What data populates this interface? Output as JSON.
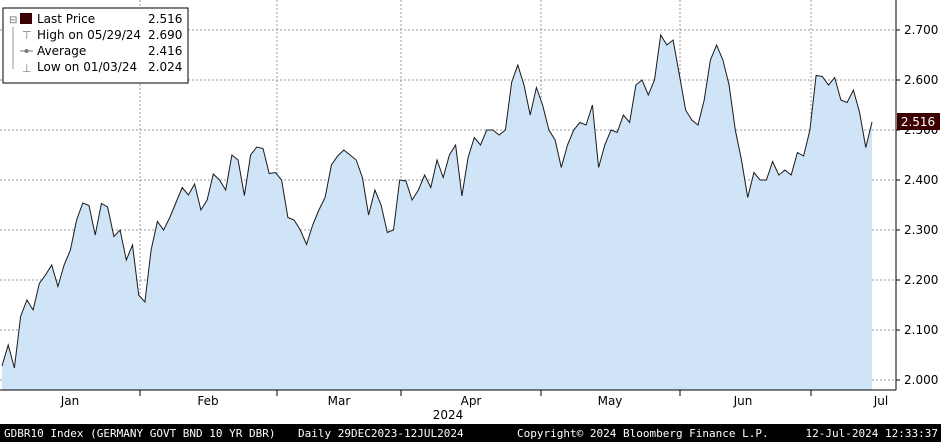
{
  "chart_data": {
    "type": "area",
    "title": "",
    "xlabel": "2024",
    "ylabel": "",
    "ylim": [
      1.98,
      2.76
    ],
    "y_ticks": [
      "2.000",
      "2.100",
      "2.200",
      "2.300",
      "2.400",
      "2.500",
      "2.600",
      "2.700"
    ],
    "x_ticks": [
      "Jan",
      "Feb",
      "Mar",
      "Apr",
      "May",
      "Jun",
      "Jul"
    ],
    "x_year_label": "2024",
    "last_value_label": "2.516",
    "grid": true,
    "legend_position": "top-left",
    "series": [
      {
        "name": "Last Price",
        "values": [
          2.028,
          2.07,
          2.024,
          2.127,
          2.16,
          2.14,
          2.193,
          2.21,
          2.23,
          2.187,
          2.23,
          2.26,
          2.32,
          2.354,
          2.349,
          2.29,
          2.353,
          2.346,
          2.287,
          2.3,
          2.24,
          2.27,
          2.17,
          2.156,
          2.26,
          2.317,
          2.3,
          2.325,
          2.355,
          2.385,
          2.37,
          2.392,
          2.34,
          2.36,
          2.412,
          2.4,
          2.38,
          2.45,
          2.44,
          2.369,
          2.45,
          2.466,
          2.463,
          2.413,
          2.415,
          2.4,
          2.325,
          2.32,
          2.3,
          2.271,
          2.31,
          2.34,
          2.365,
          2.43,
          2.448,
          2.46,
          2.45,
          2.44,
          2.405,
          2.33,
          2.38,
          2.35,
          2.295,
          2.3,
          2.4,
          2.398,
          2.36,
          2.38,
          2.41,
          2.385,
          2.44,
          2.405,
          2.45,
          2.47,
          2.368,
          2.445,
          2.485,
          2.47,
          2.5,
          2.5,
          2.49,
          2.5,
          2.595,
          2.63,
          2.59,
          2.53,
          2.585,
          2.55,
          2.5,
          2.48,
          2.425,
          2.47,
          2.5,
          2.515,
          2.51,
          2.55,
          2.425,
          2.47,
          2.5,
          2.495,
          2.53,
          2.515,
          2.59,
          2.6,
          2.57,
          2.6,
          2.69,
          2.67,
          2.68,
          2.61,
          2.54,
          2.52,
          2.51,
          2.56,
          2.64,
          2.67,
          2.64,
          2.59,
          2.5,
          2.44,
          2.365,
          2.415,
          2.4,
          2.4,
          2.437,
          2.41,
          2.42,
          2.41,
          2.455,
          2.448,
          2.5,
          2.609,
          2.607,
          2.59,
          2.605,
          2.56,
          2.555,
          2.58,
          2.535,
          2.465,
          2.516
        ]
      }
    ],
    "legend": {
      "last_price_label": "Last Price",
      "last_price_value": "2.516",
      "high_label": "High on 05/29/24",
      "high_value": "2.690",
      "average_label": "Average",
      "average_value": "2.416",
      "low_label": "Low on 01/03/24",
      "low_value": "2.024"
    },
    "colors": {
      "plot_bg": "#ffffff",
      "area_fill": "#cfe4f7",
      "line": "#1a1a1a",
      "grid": "#9a9a9a",
      "last_marker_bg": "#3d0000",
      "last_marker_text": "#ffffff"
    }
  },
  "footer": {
    "ticker_info": "GDBR10 Index (GERMANY GOVT BND 10 YR DBR)",
    "range": "Daily 29DEC2023-12JUL2024",
    "copyright": "Copyright© 2024 Bloomberg Finance L.P.",
    "timestamp": "12-Jul-2024 12:33:37"
  }
}
